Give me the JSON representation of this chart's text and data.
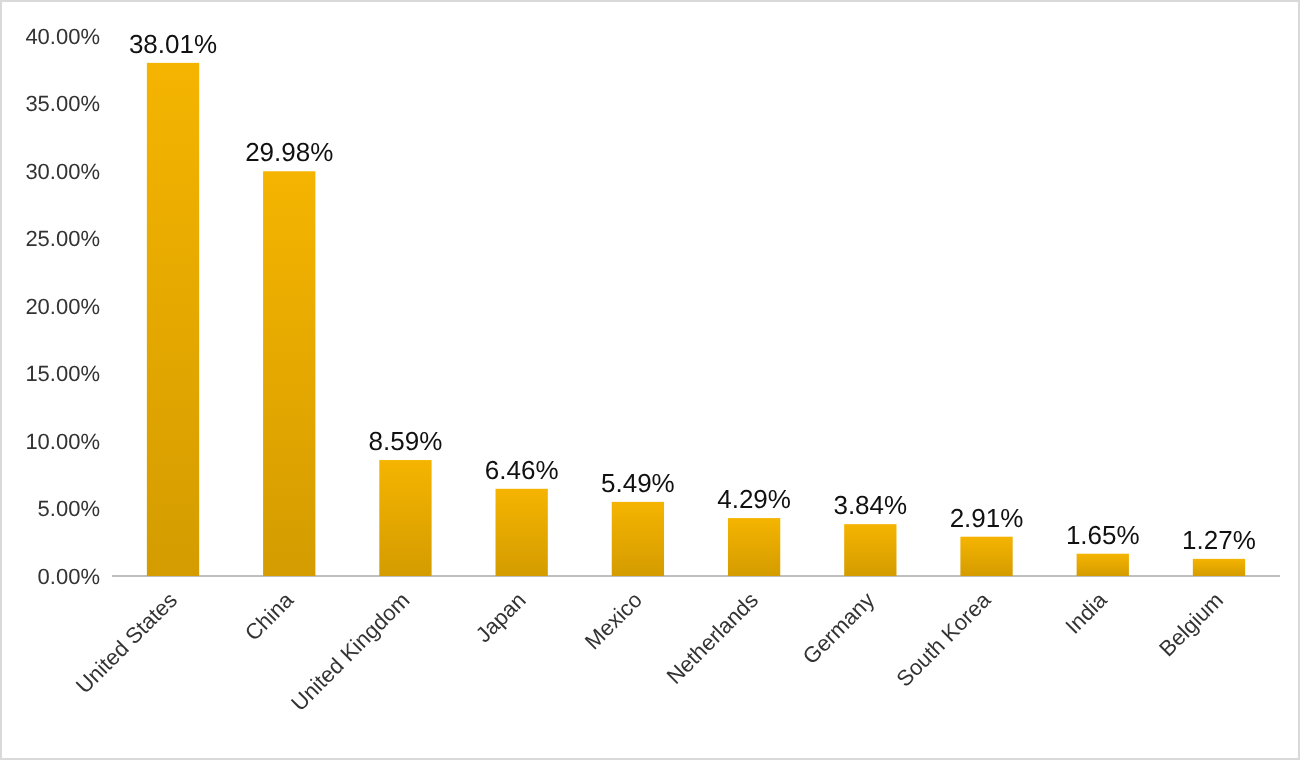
{
  "chart_data": {
    "type": "bar",
    "categories": [
      "United States",
      "China",
      "United Kingdom",
      "Japan",
      "Mexico",
      "Netherlands",
      "Germany",
      "South Korea",
      "India",
      "Belgium"
    ],
    "values": [
      38.01,
      29.98,
      8.59,
      6.46,
      5.49,
      4.29,
      3.84,
      2.91,
      1.65,
      1.27
    ],
    "value_labels": [
      "38.01%",
      "29.98%",
      "8.59%",
      "6.46%",
      "5.49%",
      "4.29%",
      "3.84%",
      "2.91%",
      "1.65%",
      "1.27%"
    ],
    "color": "#f5b400",
    "ylim": [
      0,
      40
    ],
    "yticks": [
      {
        "value": 0,
        "label": "0.00%"
      },
      {
        "value": 5,
        "label": "5.00%"
      },
      {
        "value": 10,
        "label": "10.00%"
      },
      {
        "value": 15,
        "label": "15.00%"
      },
      {
        "value": 20,
        "label": "20.00%"
      },
      {
        "value": 25,
        "label": "25.00%"
      },
      {
        "value": 30,
        "label": "30.00%"
      },
      {
        "value": 35,
        "label": "35.00%"
      },
      {
        "value": 40,
        "label": "40.00%"
      }
    ],
    "grid": false
  }
}
